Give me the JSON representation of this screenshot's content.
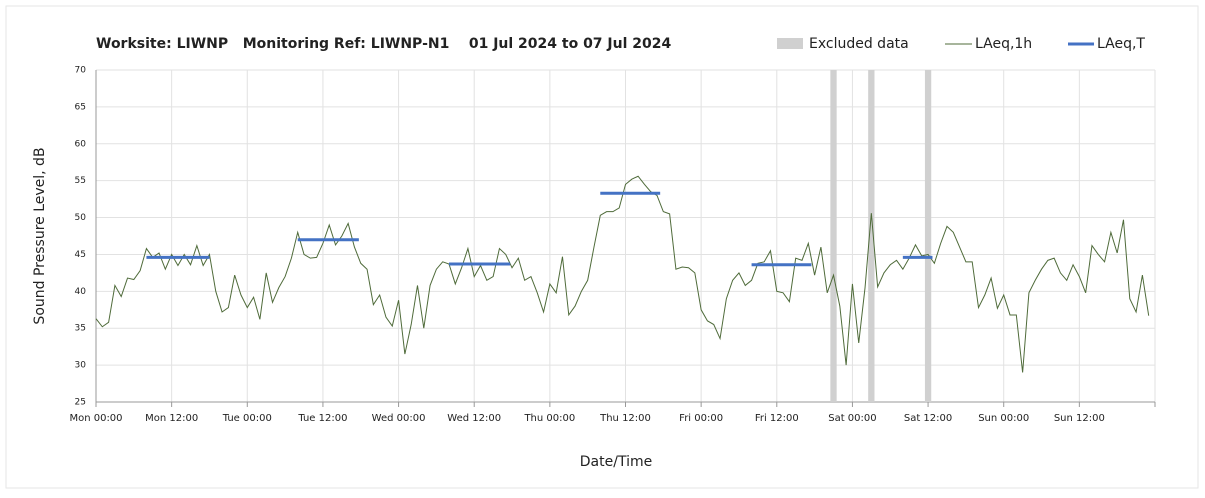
{
  "chart_data": {
    "type": "line",
    "title": "Worksite: LIWNP   Monitoring Ref: LIWNP-N1    01 Jul 2024 to 07 Jul 2024",
    "x_label": "Date/Time",
    "y_label": "Sound Pressure Level, dB",
    "xlim": [
      0,
      168
    ],
    "xticks": [
      {
        "value": 0,
        "label": "Mon 00:00"
      },
      {
        "value": 12,
        "label": "Mon 12:00"
      },
      {
        "value": 24,
        "label": "Tue 00:00"
      },
      {
        "value": 36,
        "label": "Tue 12:00"
      },
      {
        "value": 48,
        "label": "Wed 00:00"
      },
      {
        "value": 60,
        "label": "Wed 12:00"
      },
      {
        "value": 72,
        "label": "Thu 00:00"
      },
      {
        "value": 84,
        "label": "Thu 12:00"
      },
      {
        "value": 96,
        "label": "Fri 00:00"
      },
      {
        "value": 108,
        "label": "Fri 12:00"
      },
      {
        "value": 120,
        "label": "Sat 00:00"
      },
      {
        "value": 132,
        "label": "Sat 12:00"
      },
      {
        "value": 144,
        "label": "Sun 00:00"
      },
      {
        "value": 156,
        "label": "Sun 12:00"
      },
      {
        "value": 168,
        "label": ""
      }
    ],
    "ylim": [
      25,
      70
    ],
    "yticks": [
      25,
      30,
      35,
      40,
      45,
      50,
      55,
      60,
      65,
      70
    ],
    "grid": true,
    "excluded": {
      "name": "Excluded data",
      "color": "#d0d0d0",
      "ranges": [
        [
          116.5,
          117.5
        ],
        [
          122.5,
          123.5
        ],
        [
          131.5,
          132.5
        ]
      ]
    },
    "series": [
      {
        "name": "LAeq,1h",
        "color": "#4f6b3a",
        "values": [
          36.3,
          35.2,
          35.8,
          40.8,
          39.3,
          41.8,
          41.6,
          42.8,
          45.8,
          44.6,
          45.2,
          43,
          45,
          43.5,
          45,
          43.6,
          46.2,
          43.5,
          45,
          40,
          37.2,
          37.8,
          42.2,
          39.5,
          37.8,
          39.2,
          36.2,
          42.5,
          38.5,
          40.5,
          42,
          44.5,
          48,
          45,
          44.5,
          44.6,
          46.5,
          49,
          46.3,
          47.5,
          49.2,
          46,
          43.8,
          43,
          38.2,
          39.5,
          36.5,
          35.3,
          38.8,
          31.5,
          35.5,
          40.8,
          35,
          40.8,
          43,
          44,
          43.7,
          41,
          43.2,
          45.8,
          42,
          43.5,
          41.5,
          42,
          45.8,
          45,
          43.2,
          44.5,
          41.5,
          42,
          39.8,
          37.2,
          41,
          39.8,
          44.7,
          36.8,
          38,
          40,
          41.5,
          46,
          50.3,
          50.8,
          50.8,
          51.3,
          54.5,
          55.2,
          55.6,
          54.5,
          53.5,
          53,
          50.8,
          50.5,
          43,
          43.3,
          43.2,
          42.5,
          37.5,
          36,
          35.5,
          33.6,
          39,
          41.5,
          42.5,
          40.8,
          41.5,
          43.8,
          44,
          45.5,
          40,
          39.8,
          38.6,
          44.5,
          44.2,
          46.5,
          42.2,
          46,
          39.8,
          42.2,
          38,
          30,
          41,
          33,
          40.5,
          50.6,
          40.6,
          42.5,
          43.6,
          44.2,
          43,
          44.5,
          46.3,
          44.8,
          45,
          43.8,
          46.5,
          48.8,
          48,
          46,
          44,
          44,
          37.8,
          39.5,
          41.8,
          37.7,
          39.5,
          36.8,
          36.8,
          29,
          39.8,
          41.5,
          43,
          44.2,
          44.5,
          42.5,
          41.5,
          43.6,
          42,
          39.8,
          46.2,
          45,
          44,
          48,
          45.2,
          49.7,
          39,
          37.2,
          42.2,
          36.7
        ]
      }
    ],
    "periods": {
      "name": "LAeq,T",
      "color": "#4472c4",
      "segments": [
        {
          "start": 8,
          "end": 18,
          "value": 44.6
        },
        {
          "start": 32,
          "end": 41.7,
          "value": 47
        },
        {
          "start": 56,
          "end": 65.7,
          "value": 43.7
        },
        {
          "start": 80,
          "end": 89.5,
          "value": 53.3
        },
        {
          "start": 104,
          "end": 113.5,
          "value": 43.6
        },
        {
          "start": 128,
          "end": 132.7,
          "value": 44.6
        }
      ]
    }
  }
}
